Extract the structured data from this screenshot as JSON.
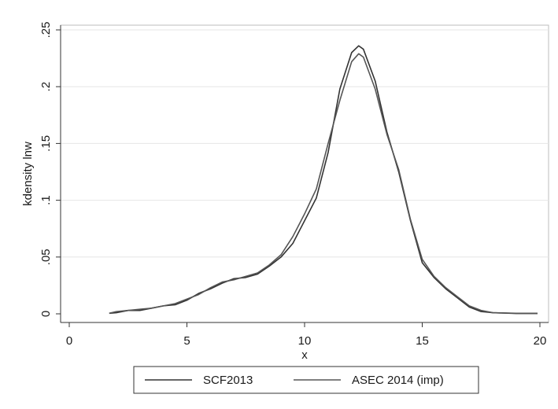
{
  "chart_data": {
    "type": "line",
    "title": "",
    "xlabel": "x",
    "ylabel": "kdensity lnw",
    "xlim": [
      0,
      20
    ],
    "ylim": [
      0,
      0.25
    ],
    "x_ticks": [
      0,
      5,
      10,
      15,
      20
    ],
    "x_tick_labels": [
      "0",
      "5",
      "10",
      "15",
      "20"
    ],
    "y_ticks": [
      0,
      0.05,
      0.1,
      0.15,
      0.2,
      0.25
    ],
    "y_tick_labels": [
      "0",
      ".05",
      ".1",
      ".15",
      ".2",
      ".25"
    ],
    "grid": "horizontal",
    "legend_position": "bottom",
    "series": [
      {
        "name": "SCF2013",
        "color": "#333333",
        "x": [
          1.7,
          2.0,
          2.5,
          3.0,
          3.5,
          4.0,
          4.5,
          5.0,
          5.5,
          6.0,
          6.5,
          7.0,
          7.5,
          8.0,
          8.5,
          9.0,
          9.5,
          10.0,
          10.5,
          11.0,
          11.5,
          12.0,
          12.3,
          12.5,
          13.0,
          13.5,
          14.0,
          14.5,
          15.0,
          15.5,
          16.0,
          16.5,
          17.0,
          17.5,
          18.0,
          19.0,
          19.9
        ],
        "y": [
          0.0005,
          0.001,
          0.003,
          0.003,
          0.005,
          0.007,
          0.008,
          0.012,
          0.018,
          0.022,
          0.027,
          0.031,
          0.032,
          0.035,
          0.042,
          0.05,
          0.062,
          0.082,
          0.102,
          0.142,
          0.198,
          0.23,
          0.236,
          0.233,
          0.205,
          0.16,
          0.125,
          0.082,
          0.045,
          0.032,
          0.022,
          0.014,
          0.006,
          0.002,
          0.001,
          0.0003,
          0.0003
        ]
      },
      {
        "name": "ASEC 2014 (imp)",
        "color": "#555555",
        "x": [
          1.7,
          2.0,
          2.5,
          3.0,
          3.5,
          4.0,
          4.5,
          5.0,
          5.5,
          6.0,
          6.5,
          7.0,
          7.5,
          8.0,
          8.5,
          9.0,
          9.5,
          10.0,
          10.5,
          11.0,
          11.5,
          12.0,
          12.3,
          12.5,
          13.0,
          13.5,
          14.0,
          14.5,
          15.0,
          15.5,
          16.0,
          16.5,
          17.0,
          17.5,
          18.0,
          19.0,
          19.9
        ],
        "y": [
          0.0005,
          0.002,
          0.003,
          0.004,
          0.005,
          0.007,
          0.009,
          0.013,
          0.017,
          0.023,
          0.028,
          0.03,
          0.033,
          0.036,
          0.043,
          0.052,
          0.068,
          0.088,
          0.11,
          0.15,
          0.188,
          0.222,
          0.229,
          0.226,
          0.198,
          0.158,
          0.127,
          0.083,
          0.048,
          0.033,
          0.023,
          0.015,
          0.007,
          0.003,
          0.001,
          0.0005,
          0.0005
        ]
      }
    ]
  }
}
